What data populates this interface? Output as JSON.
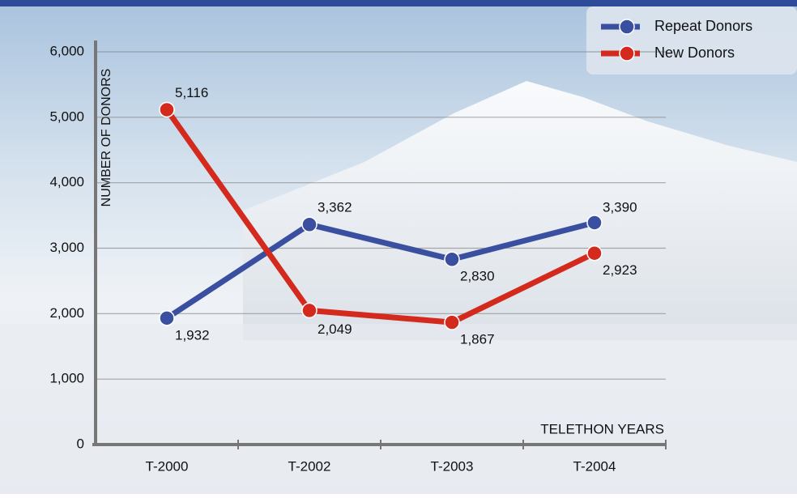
{
  "chart_data": {
    "type": "line",
    "categories": [
      "T-2000",
      "T-2002",
      "T-2003",
      "T-2004"
    ],
    "series": [
      {
        "name": "Repeat Donors",
        "color": "#3a4fa0",
        "values": [
          1932,
          3362,
          2830,
          3390
        ],
        "value_labels": [
          "1,932",
          "3,362",
          "2,830",
          "3,390"
        ]
      },
      {
        "name": "New Donors",
        "color": "#d42a1e",
        "values": [
          5116,
          2049,
          1867,
          2923
        ],
        "value_labels": [
          "5,116",
          "2,049",
          "1,867",
          "2,923"
        ]
      }
    ],
    "ylabel": "NUMBER OF DONORS",
    "xlabel": "TELETHON YEARS",
    "ylim": [
      0,
      6000
    ],
    "yticks": [
      0,
      {
        "value": 1000,
        "label": "1,000"
      },
      {
        "value": 2000,
        "label": "2,000"
      },
      {
        "value": 3000,
        "label": "3,000"
      },
      {
        "value": 4000,
        "label": "4,000"
      },
      {
        "value": 5000,
        "label": "5,000"
      },
      {
        "value": 6000,
        "label": "6,000"
      }
    ],
    "grid": true,
    "legend": "top-right"
  }
}
